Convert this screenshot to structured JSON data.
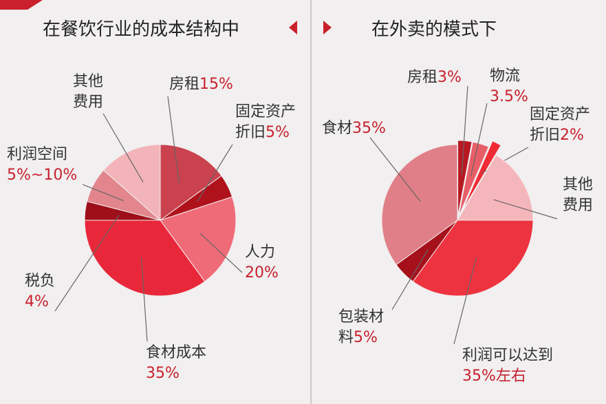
{
  "chart_data": [
    {
      "type": "pie",
      "title": "在餐饮行业的成本结构中",
      "categories": [
        "房租",
        "固定资产折旧",
        "人力",
        "食材成本",
        "税负",
        "利润空间",
        "其他费用"
      ],
      "values": [
        15,
        5,
        20,
        35,
        4,
        7.5,
        13.5
      ],
      "value_labels": [
        "15%",
        "5%",
        "20%",
        "35%",
        "4%",
        "5%~10%",
        null
      ],
      "colors": [
        "#c9424e",
        "#b0121c",
        "#f06b78",
        "#e8283a",
        "#9e0f19",
        "#e2858d",
        "#f3b4b9"
      ]
    },
    {
      "type": "pie",
      "title": "在外卖的模式下",
      "categories": [
        "房租",
        "物流",
        "固定资产折旧",
        "其他费用",
        "利润可以达到",
        "包装材料",
        "食材"
      ],
      "values": [
        3,
        3.5,
        2,
        16.5,
        35,
        5,
        35
      ],
      "value_labels": [
        "3%",
        "3.5%",
        "2%",
        null,
        "35%左右",
        "5%",
        "35%"
      ],
      "colors": [
        "#b81822",
        "#e85e68",
        "#f02a35",
        "#f5b6bb",
        "#ee3340",
        "#a5101b",
        "#e07f87"
      ]
    }
  ]
}
